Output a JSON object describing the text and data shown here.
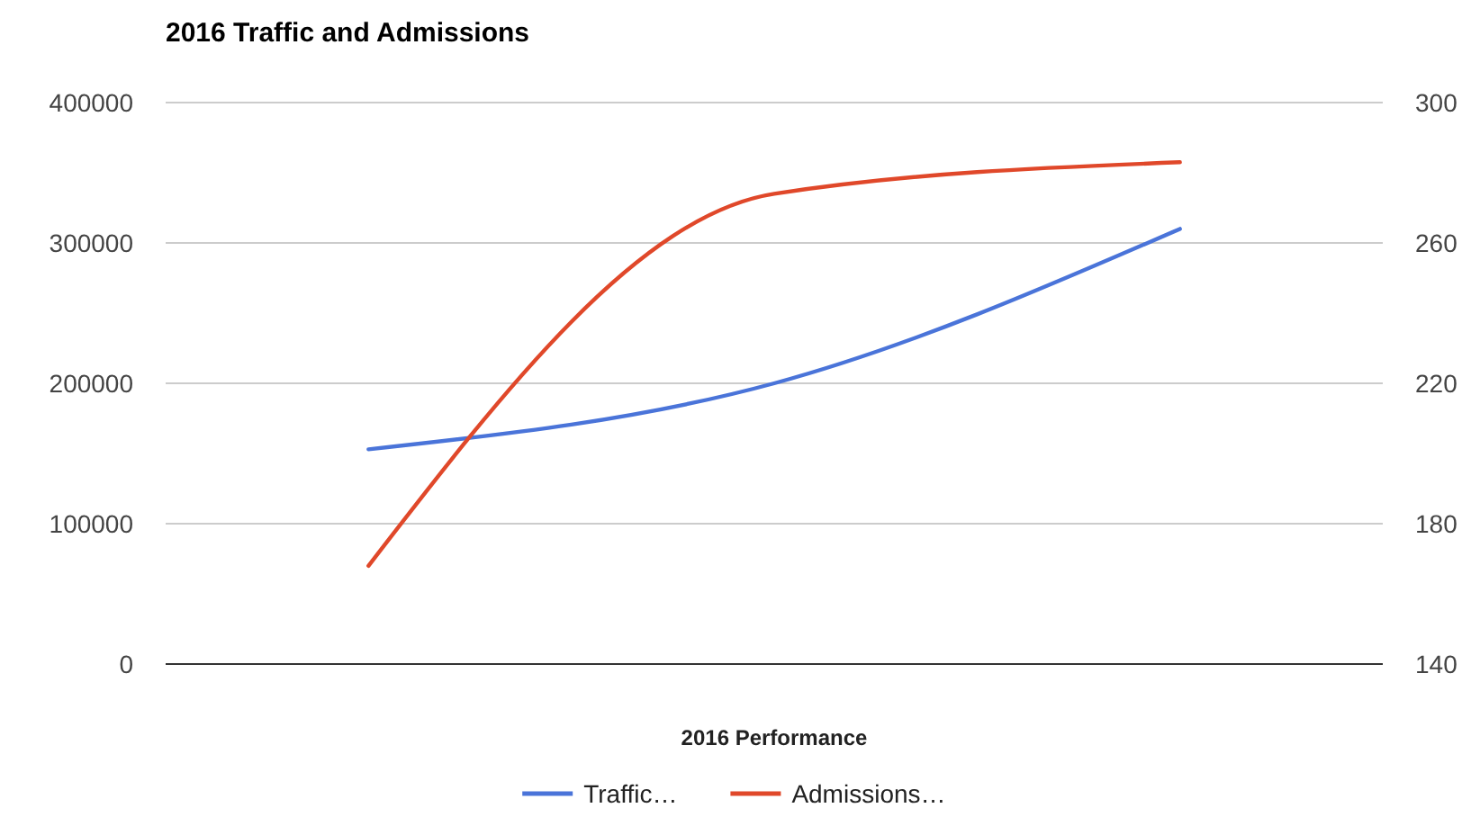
{
  "chart_data": {
    "type": "line",
    "title": "2016 Traffic and Admissions",
    "xlabel": "2016 Performance",
    "categories": [
      null,
      null,
      null
    ],
    "series": [
      {
        "name": "Traffic…",
        "color": "#4a74d9",
        "values": [
          153000,
          200000,
          310000
        ]
      },
      {
        "name": "Admissions…",
        "color": "#e0482a",
        "values": [
          168,
          274,
          283
        ],
        "axis": "y2"
      }
    ],
    "ylim": [
      0,
      400000
    ],
    "yticks": [
      0,
      100000,
      200000,
      300000,
      400000
    ],
    "y2lim": [
      140,
      300
    ],
    "y2ticks": [
      140,
      180,
      220,
      260,
      300
    ],
    "grid": "y",
    "legend": "bottom",
    "marker": "none",
    "line_style": "solid"
  }
}
